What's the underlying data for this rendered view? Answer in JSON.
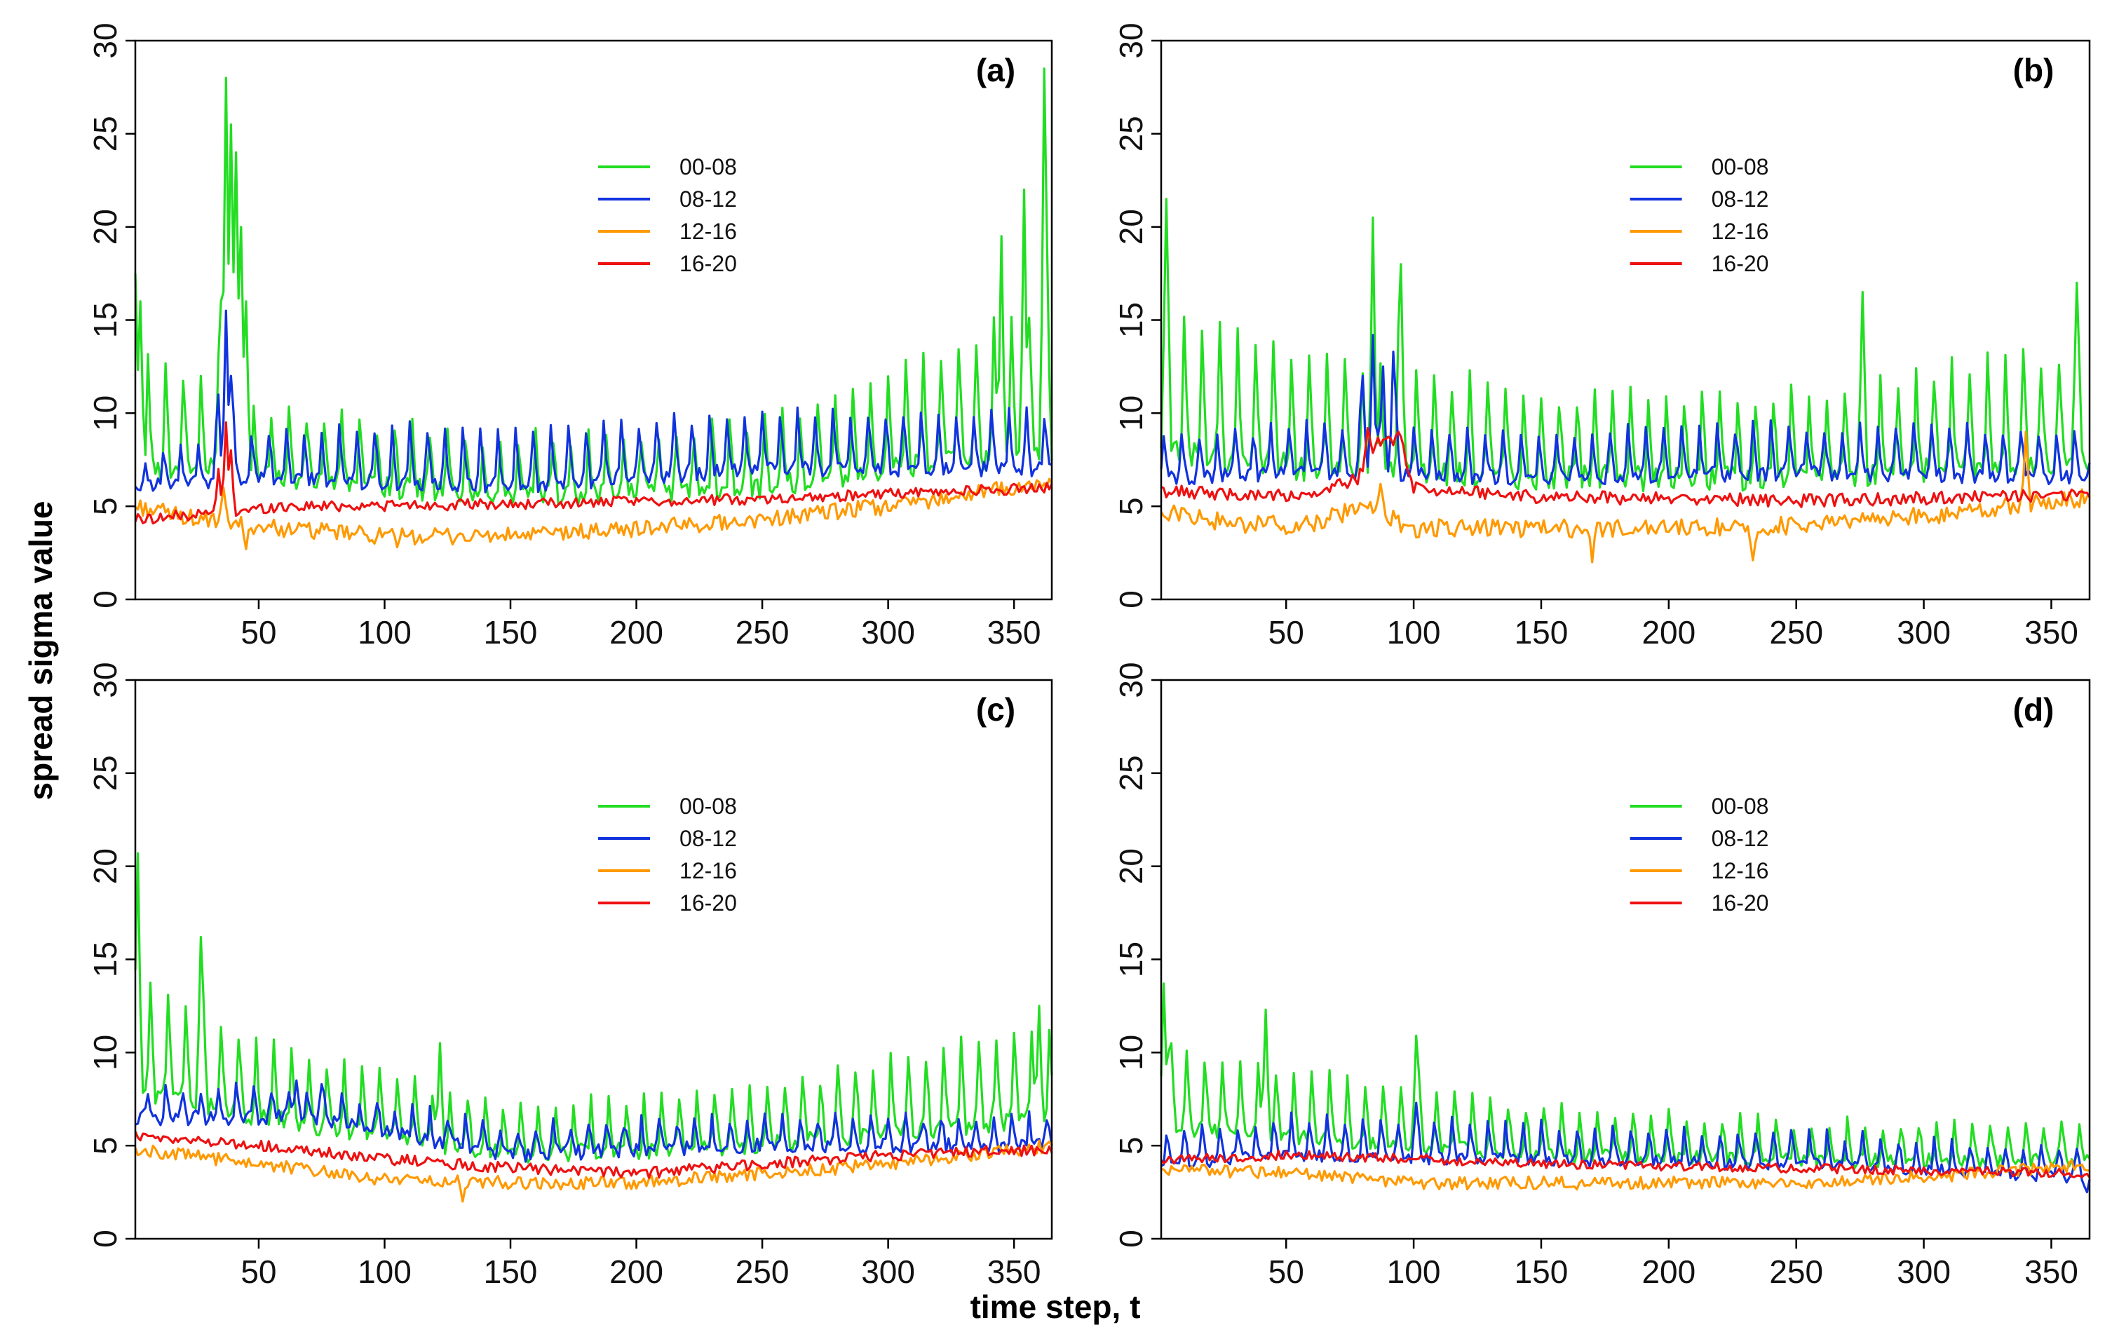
{
  "figure": {
    "ylabel": "spread sigma value",
    "xlabel": "time step, t"
  },
  "chart_data": [
    {
      "type": "line",
      "panel_label": "(a)",
      "xlim": [
        1,
        365
      ],
      "ylim": [
        0,
        30
      ],
      "xticks": [
        50,
        100,
        150,
        200,
        250,
        300,
        350
      ],
      "yticks": [
        0,
        5,
        10,
        15,
        20,
        25,
        30
      ],
      "grid": false,
      "legend_position": "top-center",
      "series_note": "daily values t=1..365 digitized: base levels per series, weekly spike pattern and local peaks estimated from the figure",
      "series": [
        {
          "name": "00-08",
          "color": "#22dd22",
          "base": [
            [
              1,
              7
            ],
            [
              30,
              7
            ],
            [
              60,
              6.5
            ],
            [
              150,
              5.5
            ],
            [
              250,
              6
            ],
            [
              300,
              7
            ],
            [
              365,
              8
            ]
          ],
          "amp": [
            [
              1,
              6
            ],
            [
              60,
              3.5
            ],
            [
              150,
              3
            ],
            [
              250,
              3.5
            ],
            [
              300,
              5
            ],
            [
              365,
              8
            ]
          ],
          "noise": 0.6,
          "peaks": [
            [
              1,
              17.5
            ],
            [
              3,
              16
            ],
            [
              35,
              16
            ],
            [
              37,
              28
            ],
            [
              39,
              25.5
            ],
            [
              41,
              24
            ],
            [
              43,
              20
            ],
            [
              45,
              16
            ],
            [
              345,
              19.5
            ],
            [
              354,
              22
            ],
            [
              362,
              28.5
            ]
          ]
        },
        {
          "name": "08-12",
          "color": "#1133dd",
          "base": [
            [
              1,
              6
            ],
            [
              50,
              6.5
            ],
            [
              150,
              6
            ],
            [
              250,
              7
            ],
            [
              365,
              7
            ]
          ],
          "amp": [
            [
              1,
              1.5
            ],
            [
              80,
              3
            ],
            [
              365,
              3
            ]
          ],
          "noise": 0.4,
          "peaks": [
            [
              34,
              11
            ],
            [
              37,
              15.5
            ],
            [
              39,
              12
            ]
          ]
        },
        {
          "name": "12-16",
          "color": "#ff9900",
          "base": [
            [
              1,
              5
            ],
            [
              30,
              4.2
            ],
            [
              60,
              3.8
            ],
            [
              100,
              3.4
            ],
            [
              150,
              3.4
            ],
            [
              200,
              3.8
            ],
            [
              250,
              4.3
            ],
            [
              300,
              5
            ],
            [
              340,
              5.8
            ],
            [
              365,
              6.2
            ]
          ],
          "amp": [
            [
              1,
              0
            ],
            [
              365,
              0
            ]
          ],
          "noise": 0.45,
          "peaks": [
            [
              36,
              6
            ],
            [
              45,
              2.7
            ],
            [
              105,
              2.8
            ]
          ]
        },
        {
          "name": "16-20",
          "color": "#ee1111",
          "base": [
            [
              1,
              4.3
            ],
            [
              30,
              4.6
            ],
            [
              60,
              5
            ],
            [
              150,
              5.1
            ],
            [
              250,
              5.4
            ],
            [
              365,
              6
            ]
          ],
          "amp": [
            [
              1,
              0
            ],
            [
              365,
              0
            ]
          ],
          "noise": 0.3,
          "peaks": [
            [
              34,
              7
            ],
            [
              37,
              9.5
            ],
            [
              39,
              8
            ]
          ]
        }
      ]
    },
    {
      "type": "line",
      "panel_label": "(b)",
      "xlim": [
        1,
        365
      ],
      "ylim": [
        0,
        30
      ],
      "xticks": [
        50,
        100,
        150,
        200,
        250,
        300,
        350
      ],
      "yticks": [
        0,
        5,
        10,
        15,
        20,
        25,
        30
      ],
      "grid": false,
      "legend_position": "top-center",
      "series_note": "daily values t=1..365 digitized: base levels per series, weekly spike pattern and local peaks estimated from the figure",
      "series": [
        {
          "name": "00-08",
          "color": "#22dd22",
          "base": [
            [
              1,
              8
            ],
            [
              60,
              7
            ],
            [
              150,
              6.5
            ],
            [
              250,
              6.5
            ],
            [
              365,
              7.5
            ]
          ],
          "amp": [
            [
              1,
              7
            ],
            [
              60,
              6
            ],
            [
              150,
              4.5
            ],
            [
              250,
              4.5
            ],
            [
              365,
              6
            ]
          ],
          "noise": 0.7,
          "peaks": [
            [
              3,
              21.5
            ],
            [
              84,
              20.5
            ],
            [
              95,
              18
            ],
            [
              276,
              16.5
            ],
            [
              360,
              17
            ]
          ]
        },
        {
          "name": "08-12",
          "color": "#1133dd",
          "base": [
            [
              1,
              6.5
            ],
            [
              60,
              6.8
            ],
            [
              150,
              6.5
            ],
            [
              250,
              6.8
            ],
            [
              365,
              6.5
            ]
          ],
          "amp": [
            [
              1,
              2
            ],
            [
              60,
              2.5
            ],
            [
              365,
              2.5
            ]
          ],
          "noise": 0.4,
          "peaks": [
            [
              80,
              12
            ],
            [
              84,
              14.2
            ],
            [
              88,
              12.5
            ],
            [
              92,
              13.3
            ]
          ]
        },
        {
          "name": "12-16",
          "color": "#ff9900",
          "base": [
            [
              1,
              4.8
            ],
            [
              30,
              4
            ],
            [
              60,
              4
            ],
            [
              80,
              5
            ],
            [
              100,
              3.8
            ],
            [
              150,
              3.8
            ],
            [
              200,
              3.8
            ],
            [
              250,
              4
            ],
            [
              300,
              4.5
            ],
            [
              365,
              5.5
            ]
          ],
          "amp": [
            [
              1,
              0
            ],
            [
              365,
              0
            ]
          ],
          "noise": 0.5,
          "peaks": [
            [
              87,
              6.2
            ],
            [
              170,
              2
            ],
            [
              233,
              2.1
            ],
            [
              340,
              9
            ]
          ]
        },
        {
          "name": "16-20",
          "color": "#ee1111",
          "base": [
            [
              1,
              5.8
            ],
            [
              60,
              5.5
            ],
            [
              78,
              6.5
            ],
            [
              85,
              8.5
            ],
            [
              95,
              8.5
            ],
            [
              100,
              6
            ],
            [
              150,
              5.5
            ],
            [
              250,
              5.3
            ],
            [
              365,
              5.6
            ]
          ],
          "amp": [
            [
              1,
              0
            ],
            [
              365,
              0
            ]
          ],
          "noise": 0.35,
          "peaks": [
            [
              82,
              9.2
            ],
            [
              94,
              9
            ]
          ]
        }
      ]
    },
    {
      "type": "line",
      "panel_label": "(c)",
      "xlim": [
        1,
        365
      ],
      "ylim": [
        0,
        30
      ],
      "xticks": [
        50,
        100,
        150,
        200,
        250,
        300,
        350
      ],
      "yticks": [
        0,
        5,
        10,
        15,
        20,
        25,
        30
      ],
      "grid": false,
      "legend_position": "top-center",
      "series_note": "daily values t=1..365 digitized: base levels per series, weekly spike pattern and local peaks estimated from the figure",
      "series": [
        {
          "name": "00-08",
          "color": "#22dd22",
          "base": [
            [
              1,
              8
            ],
            [
              50,
              6.5
            ],
            [
              150,
              4.5
            ],
            [
              250,
              5
            ],
            [
              365,
              6.5
            ]
          ],
          "amp": [
            [
              1,
              6
            ],
            [
              50,
              4
            ],
            [
              150,
              2.5
            ],
            [
              250,
              3
            ],
            [
              365,
              5
            ]
          ],
          "noise": 0.5,
          "peaks": [
            [
              2,
              20.7
            ],
            [
              27,
              16.2
            ],
            [
              122,
              10.5
            ],
            [
              360,
              12.5
            ]
          ]
        },
        {
          "name": "08-12",
          "color": "#1133dd",
          "base": [
            [
              1,
              6.5
            ],
            [
              70,
              6.5
            ],
            [
              150,
              4.5
            ],
            [
              250,
              5
            ],
            [
              365,
              5
            ]
          ],
          "amp": [
            [
              1,
              1.5
            ],
            [
              365,
              1.5
            ]
          ],
          "noise": 0.4,
          "peaks": [
            [
              65,
              8.5
            ],
            [
              75,
              8.3
            ]
          ]
        },
        {
          "name": "12-16",
          "color": "#ff9900",
          "base": [
            [
              1,
              4.8
            ],
            [
              50,
              4
            ],
            [
              100,
              3.2
            ],
            [
              150,
              3
            ],
            [
              200,
              3
            ],
            [
              250,
              3.5
            ],
            [
              300,
              4
            ],
            [
              365,
              5
            ]
          ],
          "amp": [
            [
              1,
              0
            ],
            [
              365,
              0
            ]
          ],
          "noise": 0.35,
          "peaks": [
            [
              131,
              2
            ]
          ]
        },
        {
          "name": "16-20",
          "color": "#ee1111",
          "base": [
            [
              1,
              5.5
            ],
            [
              50,
              5
            ],
            [
              100,
              4.3
            ],
            [
              150,
              3.8
            ],
            [
              200,
              3.5
            ],
            [
              250,
              4
            ],
            [
              300,
              4.5
            ],
            [
              365,
              4.8
            ]
          ],
          "amp": [
            [
              1,
              0
            ],
            [
              365,
              0
            ]
          ],
          "noise": 0.3,
          "peaks": []
        }
      ]
    },
    {
      "type": "line",
      "panel_label": "(d)",
      "xlim": [
        1,
        365
      ],
      "ylim": [
        0,
        30
      ],
      "xticks": [
        50,
        100,
        150,
        200,
        250,
        300,
        350
      ],
      "yticks": [
        0,
        5,
        10,
        15,
        20,
        25,
        30
      ],
      "grid": false,
      "legend_position": "top-center",
      "series_note": "daily values t=1..365 digitized: base levels per series, weekly spike pattern and local peaks estimated from the figure",
      "series": [
        {
          "name": "00-08",
          "color": "#22dd22",
          "base": [
            [
              1,
              6
            ],
            [
              50,
              5.5
            ],
            [
              150,
              4.5
            ],
            [
              250,
              4.2
            ],
            [
              365,
              4.2
            ]
          ],
          "amp": [
            [
              1,
              4
            ],
            [
              50,
              3.5
            ],
            [
              150,
              2.5
            ],
            [
              250,
              2
            ],
            [
              365,
              2
            ]
          ],
          "noise": 0.4,
          "peaks": [
            [
              2,
              13.7
            ],
            [
              5,
              10.5
            ],
            [
              42,
              12.3
            ],
            [
              101,
              10.9
            ]
          ]
        },
        {
          "name": "08-12",
          "color": "#1133dd",
          "base": [
            [
              1,
              4
            ],
            [
              50,
              4.5
            ],
            [
              150,
              4.2
            ],
            [
              250,
              4
            ],
            [
              365,
              3.3
            ]
          ],
          "amp": [
            [
              1,
              1.5
            ],
            [
              60,
              2
            ],
            [
              365,
              1.5
            ]
          ],
          "noise": 0.35,
          "peaks": [
            [
              101,
              7.3
            ],
            [
              364,
              2.5
            ]
          ]
        },
        {
          "name": "12-16",
          "color": "#ff9900",
          "base": [
            [
              1,
              3.8
            ],
            [
              50,
              3.5
            ],
            [
              100,
              3
            ],
            [
              150,
              3
            ],
            [
              200,
              3
            ],
            [
              250,
              3
            ],
            [
              300,
              3.3
            ],
            [
              365,
              4
            ]
          ],
          "amp": [
            [
              1,
              0
            ],
            [
              365,
              0
            ]
          ],
          "noise": 0.35,
          "peaks": []
        },
        {
          "name": "16-20",
          "color": "#ee1111",
          "base": [
            [
              1,
              4.2
            ],
            [
              50,
              4.5
            ],
            [
              100,
              4.3
            ],
            [
              150,
              4
            ],
            [
              250,
              3.8
            ],
            [
              365,
              3.5
            ]
          ],
          "amp": [
            [
              1,
              0
            ],
            [
              365,
              0
            ]
          ],
          "noise": 0.25,
          "peaks": []
        }
      ]
    }
  ]
}
